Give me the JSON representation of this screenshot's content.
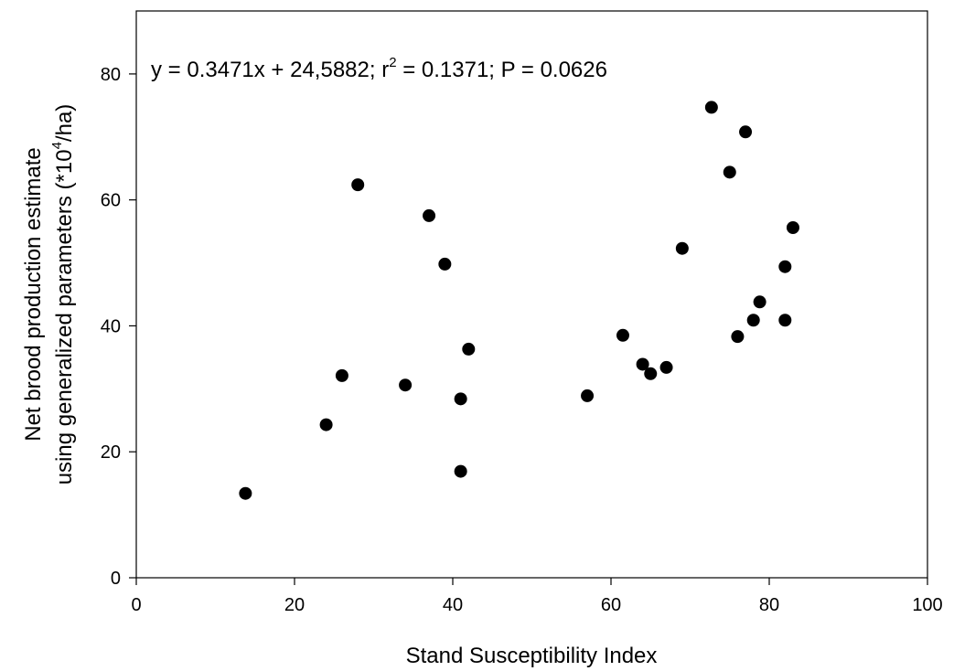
{
  "chart_data": {
    "type": "scatter",
    "title": "",
    "annotation": {
      "prefix": "y = 0.3471x + 24,5882; r",
      "sup": "2",
      "suffix": " = 0.1371; P = 0.0626"
    },
    "xlabel": "Stand Susceptibility Index",
    "ylabel_line1": "Net brood production estimate",
    "ylabel_line2_prefix": "using generalized parameters (*10",
    "ylabel_line2_sup": "4",
    "ylabel_line2_suffix": "/ha)",
    "xlim": [
      0,
      100
    ],
    "ylim": [
      0,
      90
    ],
    "xticks": [
      0,
      20,
      40,
      60,
      80,
      100
    ],
    "yticks": [
      0,
      20,
      40,
      60,
      80
    ],
    "xtick_labels": [
      "0",
      "20",
      "40",
      "60",
      "80",
      "100"
    ],
    "ytick_labels": [
      "0",
      "20",
      "40",
      "60",
      "80"
    ],
    "grid": false,
    "legend": "none",
    "marker_color": "#000000",
    "points": [
      {
        "x": 13.8,
        "y": 13.4
      },
      {
        "x": 24.0,
        "y": 24.3
      },
      {
        "x": 26.0,
        "y": 32.1
      },
      {
        "x": 28.0,
        "y": 62.4
      },
      {
        "x": 34.0,
        "y": 30.6
      },
      {
        "x": 37.0,
        "y": 57.5
      },
      {
        "x": 39.0,
        "y": 49.8
      },
      {
        "x": 41.0,
        "y": 28.4
      },
      {
        "x": 41.0,
        "y": 16.9
      },
      {
        "x": 42.0,
        "y": 36.3
      },
      {
        "x": 57.0,
        "y": 28.9
      },
      {
        "x": 61.5,
        "y": 38.5
      },
      {
        "x": 64.0,
        "y": 33.9
      },
      {
        "x": 65.0,
        "y": 32.4
      },
      {
        "x": 67.0,
        "y": 33.4
      },
      {
        "x": 69.0,
        "y": 52.3
      },
      {
        "x": 72.7,
        "y": 74.7
      },
      {
        "x": 75.0,
        "y": 64.4
      },
      {
        "x": 76.0,
        "y": 38.3
      },
      {
        "x": 77.0,
        "y": 70.8
      },
      {
        "x": 78.0,
        "y": 40.9
      },
      {
        "x": 78.8,
        "y": 43.8
      },
      {
        "x": 82.0,
        "y": 49.4
      },
      {
        "x": 82.0,
        "y": 40.9
      },
      {
        "x": 83.0,
        "y": 55.6
      }
    ]
  }
}
